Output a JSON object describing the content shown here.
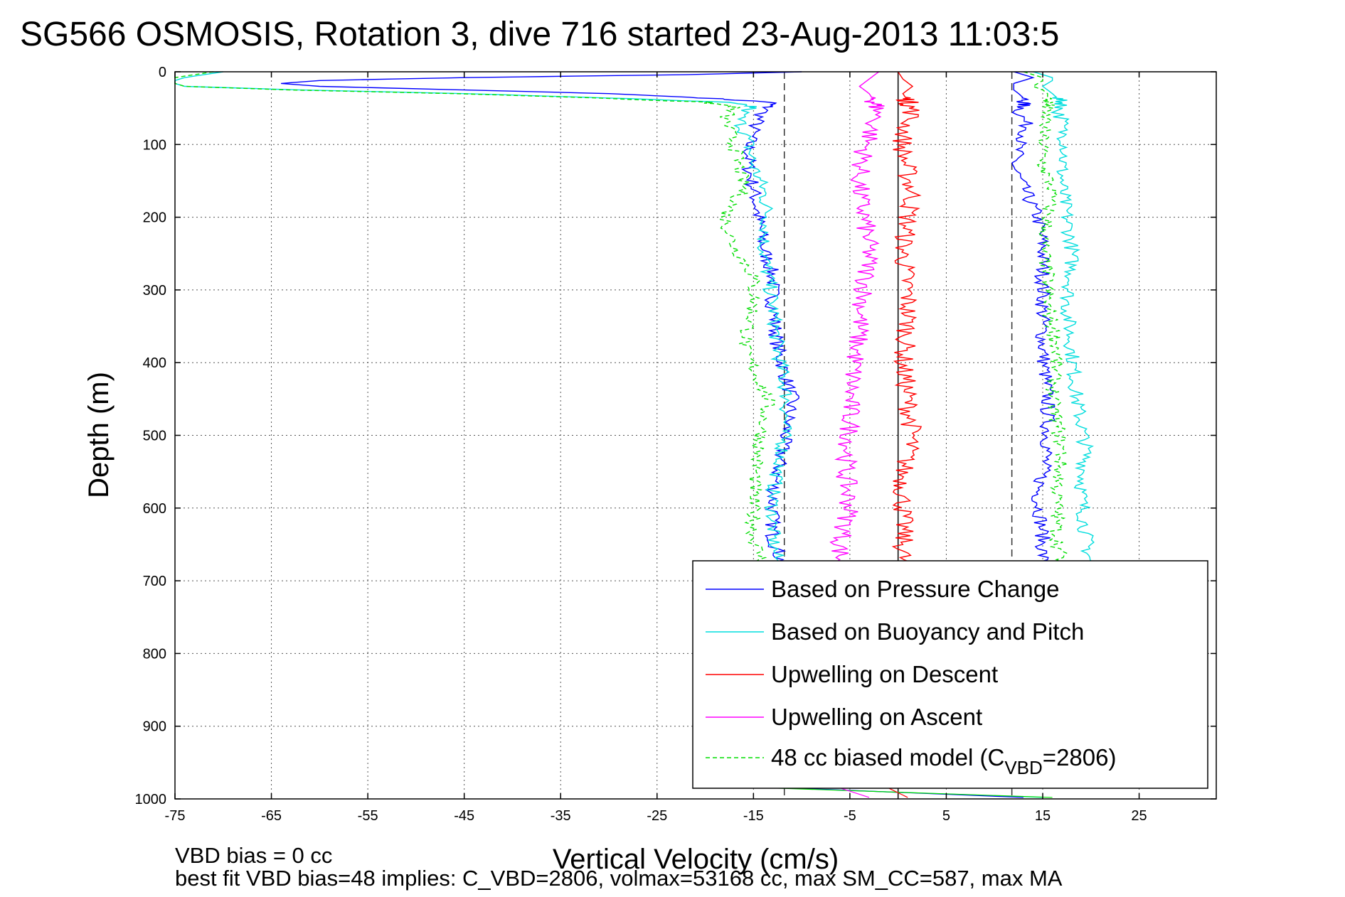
{
  "chart_data": {
    "type": "line",
    "title": "SG566 OSMOSIS, Rotation 3, dive 716 started 23-Aug-2013 11:03:5",
    "xlabel": "Vertical Velocity (cm/s)",
    "ylabel": "Depth (m)",
    "xlim": [
      -75,
      33
    ],
    "ylim": [
      0,
      1000
    ],
    "y_reversed": true,
    "grid": true,
    "legend_position": "bottom-right",
    "xticks": [
      "-75",
      "-65",
      "-55",
      "-45",
      "-35",
      "-25",
      "-15",
      "-5",
      "5",
      "15",
      "25"
    ],
    "xtick_values": [
      -75,
      -65,
      -55,
      -45,
      -35,
      -25,
      -15,
      -5,
      5,
      15,
      25
    ],
    "yticks": [
      "0",
      "100",
      "200",
      "300",
      "400",
      "500",
      "600",
      "700",
      "800",
      "900",
      "1000"
    ],
    "ytick_values": [
      0,
      100,
      200,
      300,
      400,
      500,
      600,
      700,
      800,
      900,
      1000
    ],
    "reference_lines": {
      "dashed_x": [
        -11.8,
        11.8
      ],
      "solid_x": [
        0
      ]
    },
    "series": [
      {
        "name": "Based on Pressure Change",
        "color": "#0000ff",
        "depth": [
          0,
          4,
          8,
          12,
          16,
          20,
          25,
          30,
          36,
          42,
          48,
          55,
          65,
          80,
          100,
          130,
          160,
          200,
          240,
          280,
          320,
          380,
          450,
          520,
          580,
          640,
          680
        ],
        "descent": [
          -10,
          -22,
          -45,
          -60,
          -64,
          -60,
          -45,
          -30,
          -20,
          -13,
          -13.5,
          -14,
          -14.5,
          -15,
          -15.5,
          -15.5,
          -15,
          -14.5,
          -14,
          -13,
          -13,
          -12.5,
          -11,
          -12,
          -13,
          -13,
          -12
        ],
        "ascent": [
          12,
          13,
          14,
          13,
          12,
          12,
          12,
          12.5,
          13,
          13,
          13,
          12.5,
          13,
          13.5,
          12.5,
          12,
          13,
          14.5,
          15,
          15,
          15,
          15,
          15.5,
          15.5,
          14.5,
          15,
          15
        ]
      },
      {
        "name": "Based on Buoyancy and Pitch",
        "color": "#00dddd",
        "depth": [
          0,
          4,
          8,
          12,
          16,
          20,
          25,
          30,
          36,
          42,
          48,
          55,
          65,
          80,
          100,
          130,
          160,
          200,
          240,
          280,
          320,
          380,
          450,
          520,
          580,
          640,
          680
        ],
        "descent": [
          -70,
          -72,
          -74,
          -75,
          -75,
          -74,
          -62,
          -45,
          -30,
          -18,
          -15,
          -16,
          -16.5,
          -16,
          -15.5,
          -15,
          -14,
          -13.5,
          -14,
          -13.5,
          -13,
          -12.5,
          -11.5,
          -12,
          -13,
          -13,
          -12.5
        ],
        "ascent": [
          14,
          15,
          16,
          16,
          15.5,
          15,
          15.5,
          16,
          16.5,
          17,
          17,
          16.5,
          17,
          17,
          17.5,
          17,
          17,
          17.5,
          18,
          18,
          17.5,
          18,
          18.5,
          19.5,
          19,
          19.5,
          20
        ]
      },
      {
        "name": "Upwelling on Descent",
        "color": "#ff0000",
        "depth": [
          0,
          10,
          20,
          30,
          40,
          55,
          70,
          90,
          110,
          140,
          170,
          200,
          250,
          300,
          350,
          400,
          450,
          500,
          550,
          600,
          650,
          680
        ],
        "values": [
          0,
          0.5,
          1.5,
          0.5,
          1,
          1.5,
          1,
          0.5,
          0.5,
          1,
          1.5,
          1,
          0.5,
          1,
          1,
          0.5,
          1,
          1.5,
          0.5,
          0.5,
          0.5,
          0.5
        ]
      },
      {
        "name": "Upwelling on Ascent",
        "color": "#ff00ff",
        "depth": [
          0,
          10,
          20,
          30,
          40,
          55,
          70,
          90,
          110,
          140,
          170,
          200,
          250,
          300,
          350,
          400,
          450,
          500,
          550,
          600,
          650,
          680
        ],
        "values": [
          -2,
          -3,
          -4,
          -3,
          -2.5,
          -2,
          -2.5,
          -3,
          -3.5,
          -4,
          -4,
          -3.5,
          -3,
          -3.5,
          -4,
          -4.5,
          -5,
          -5,
          -5.5,
          -5,
          -6,
          -6
        ]
      },
      {
        "name": "48 cc biased model (C",
        "color": "#00dd00",
        "depth": [
          0,
          4,
          8,
          12,
          16,
          20,
          25,
          30,
          36,
          42,
          48,
          55,
          65,
          80,
          100,
          130,
          160,
          200,
          240,
          280,
          320,
          380,
          450,
          520,
          580,
          640,
          680
        ],
        "descent": [
          -71,
          -73,
          -75,
          -75,
          -75,
          -74,
          -63,
          -46,
          -31,
          -20,
          -17,
          -17.5,
          -18,
          -17.5,
          -17,
          -16.5,
          -16,
          -18,
          -17,
          -15,
          -15,
          -16,
          -13.5,
          -14.5,
          -15,
          -15,
          -14
        ],
        "ascent": [
          13,
          14,
          15,
          15,
          14.5,
          14,
          15,
          15.5,
          15.5,
          15.5,
          15.5,
          15,
          15.5,
          15,
          15,
          15,
          16,
          15.5,
          15,
          15.5,
          15.5,
          16.5,
          16,
          17,
          16.5,
          16.5,
          17
        ]
      }
    ],
    "legend": [
      {
        "label": "Based on Pressure Change",
        "color": "#0000ff"
      },
      {
        "label": "Based on Buoyancy and Pitch",
        "color": "#00dddd"
      },
      {
        "label": "Upwelling on Descent",
        "color": "#ff0000"
      },
      {
        "label": "Upwelling on Ascent",
        "color": "#ff00ff"
      },
      {
        "label": "48 cc biased model (C",
        "sub": "VBD",
        "suffix": "=2806)",
        "color": "#00dd00"
      }
    ],
    "annotations": {
      "bias": "VBD bias = 0 cc",
      "fit": "best fit VBD bias=48 implies: C_VBD=2806, volmax=53168 cc, max SM_CC=587, max MA"
    }
  }
}
